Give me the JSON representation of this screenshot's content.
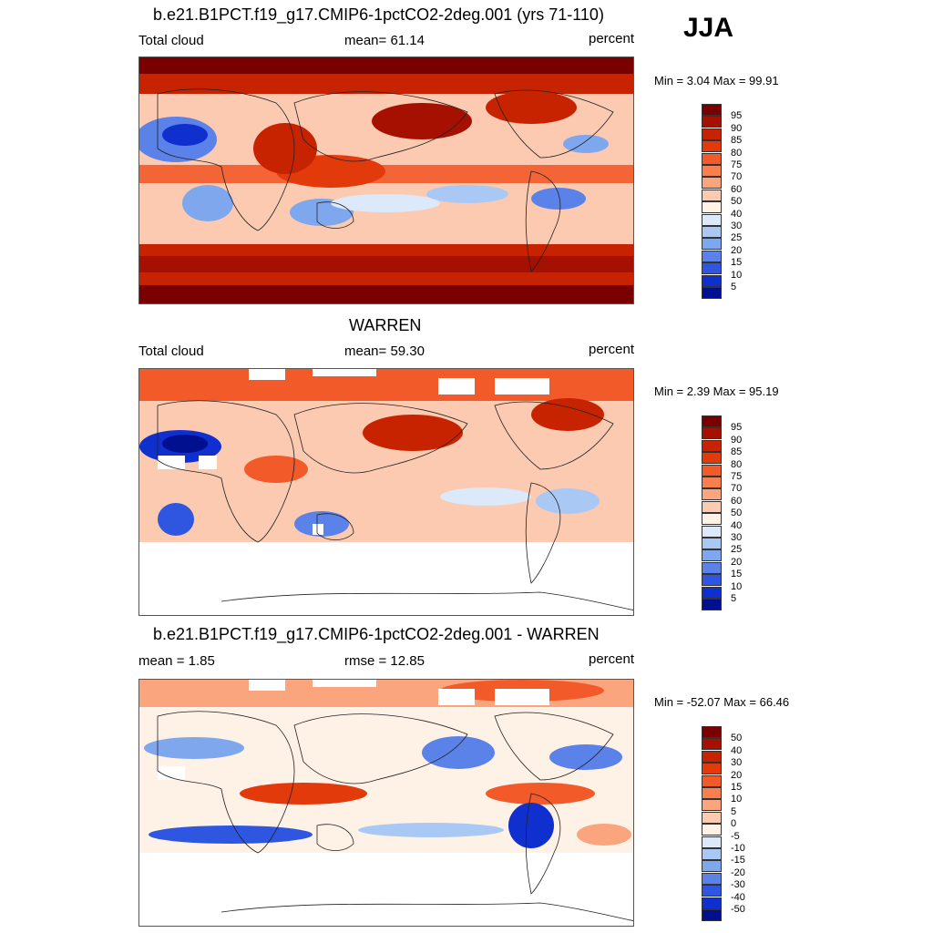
{
  "season": "JJA",
  "panels": [
    {
      "title": "b.e21.B1PCT.f19_g17.CMIP6-1pctCO2-2deg.001 (yrs 71-110)",
      "left_label": "Total cloud",
      "center_label": "mean=  61.14",
      "right_label": "percent",
      "minmax": "Min =   3.04 Max =  99.91",
      "colorbar_labels": [
        "95",
        "90",
        "85",
        "80",
        "75",
        "70",
        "60",
        "50",
        "40",
        "30",
        "25",
        "20",
        "15",
        "10",
        "5"
      ]
    },
    {
      "title": "WARREN",
      "left_label": "Total cloud",
      "center_label": "mean=  59.30",
      "right_label": "percent",
      "minmax": "Min =   2.39 Max =  95.19",
      "colorbar_labels": [
        "95",
        "90",
        "85",
        "80",
        "75",
        "70",
        "60",
        "50",
        "40",
        "30",
        "25",
        "20",
        "15",
        "10",
        "5"
      ]
    },
    {
      "title": "b.e21.B1PCT.f19_g17.CMIP6-1pctCO2-2deg.001 - WARREN",
      "left_label": "mean =   1.85",
      "center_label": "rmse =  12.85",
      "right_label": "percent",
      "minmax": "Min = -52.07 Max =  66.46",
      "colorbar_labels": [
        "50",
        "40",
        "30",
        "20",
        "15",
        "10",
        "5",
        "0",
        "-5",
        "-10",
        "-15",
        "-20",
        "-30",
        "-40",
        "-50"
      ]
    }
  ],
  "colors": {
    "palette16": [
      "#7a0000",
      "#a51000",
      "#c82300",
      "#e33a0b",
      "#f25a2a",
      "#f8804f",
      "#fba57e",
      "#fccab0",
      "#fef1e6",
      "#dbe9fb",
      "#aac8f4",
      "#7fa7ee",
      "#5b82e9",
      "#2e56e1",
      "#0f2fce",
      "#00108f"
    ]
  }
}
